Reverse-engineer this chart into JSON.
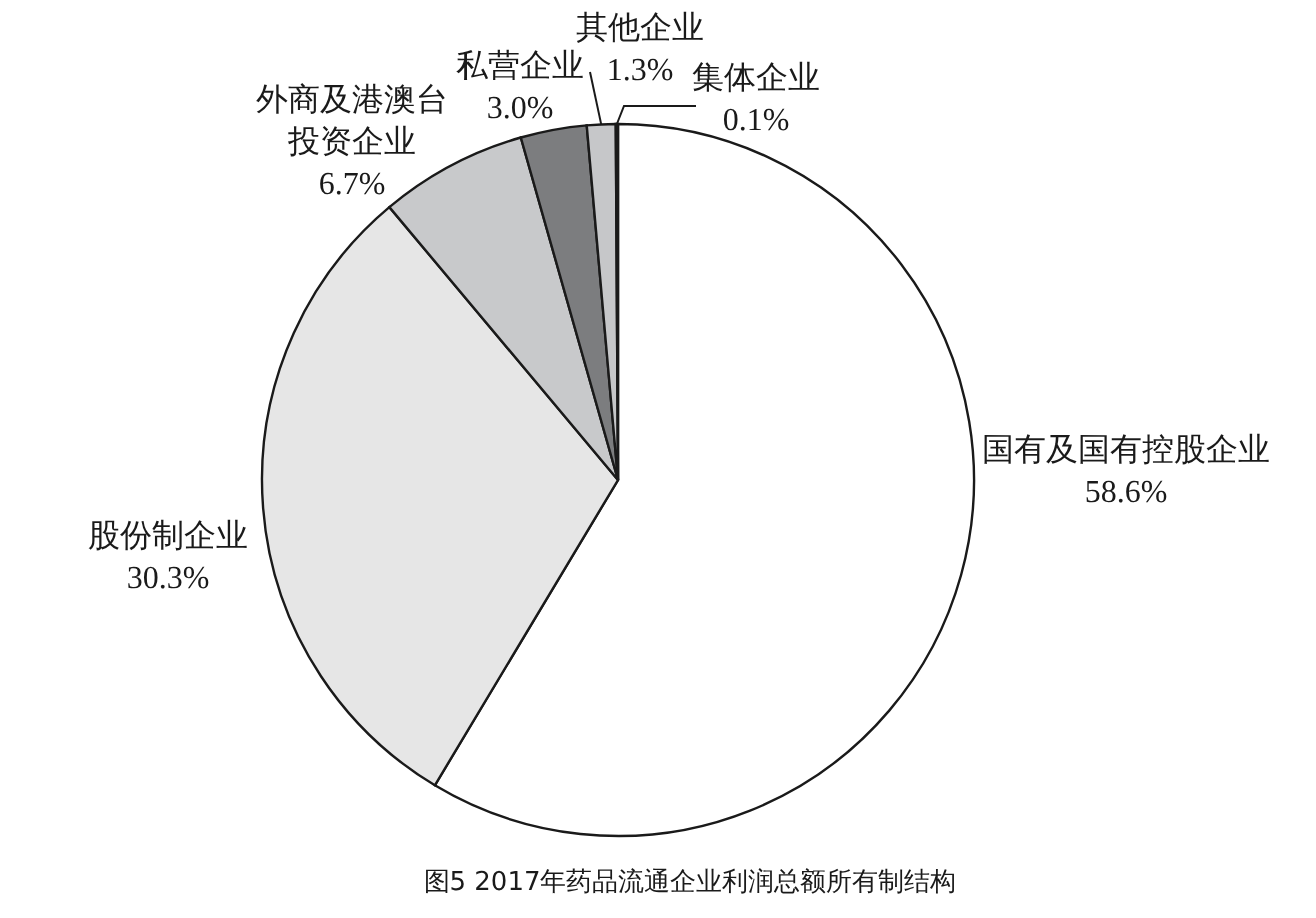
{
  "chart_data": {
    "type": "pie",
    "title": "图5 2017年药品流通企业利润总额所有制结构",
    "categories": [
      "国有及国有控股企业",
      "股份制企业",
      "外商及港澳台投资企业",
      "私营企业",
      "其他企业",
      "集体企业"
    ],
    "values": [
      58.6,
      30.3,
      6.7,
      3.0,
      1.3,
      0.1
    ],
    "colors": [
      "#ffffff",
      "#e6e6e6",
      "#c8c9cb",
      "#7c7d7f",
      "#c6c7c9",
      "#5a5a5a"
    ],
    "value_labels": [
      "58.6%",
      "30.3%",
      "6.7%",
      "3.0%",
      "1.3%",
      "0.1%"
    ]
  }
}
